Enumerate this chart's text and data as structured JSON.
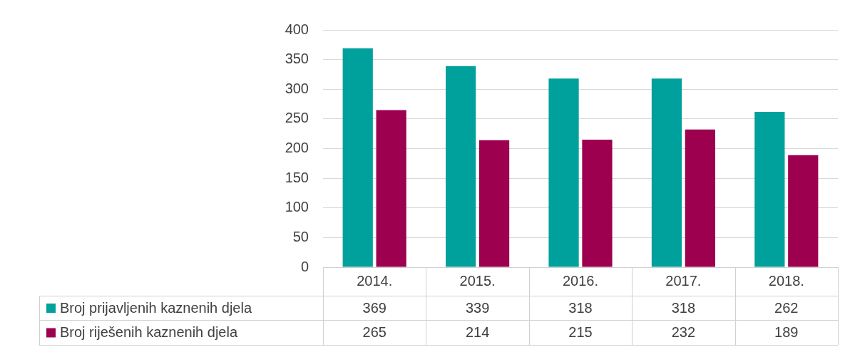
{
  "chart_data": {
    "type": "bar",
    "categories": [
      "2014.",
      "2015.",
      "2016.",
      "2017.",
      "2018."
    ],
    "series": [
      {
        "name": "Broj prijavljenih kaznenih djela",
        "color": "#00a09d",
        "values": [
          369,
          339,
          318,
          318,
          262
        ]
      },
      {
        "name": "Broj riješenih kaznenih djela",
        "color": "#9c004f",
        "values": [
          265,
          214,
          215,
          232,
          189
        ]
      }
    ],
    "ylim": [
      0,
      400
    ],
    "yticks": [
      0,
      50,
      100,
      150,
      200,
      250,
      300,
      350,
      400
    ],
    "grid": "y",
    "legend": "bottom",
    "data_labels": true
  }
}
